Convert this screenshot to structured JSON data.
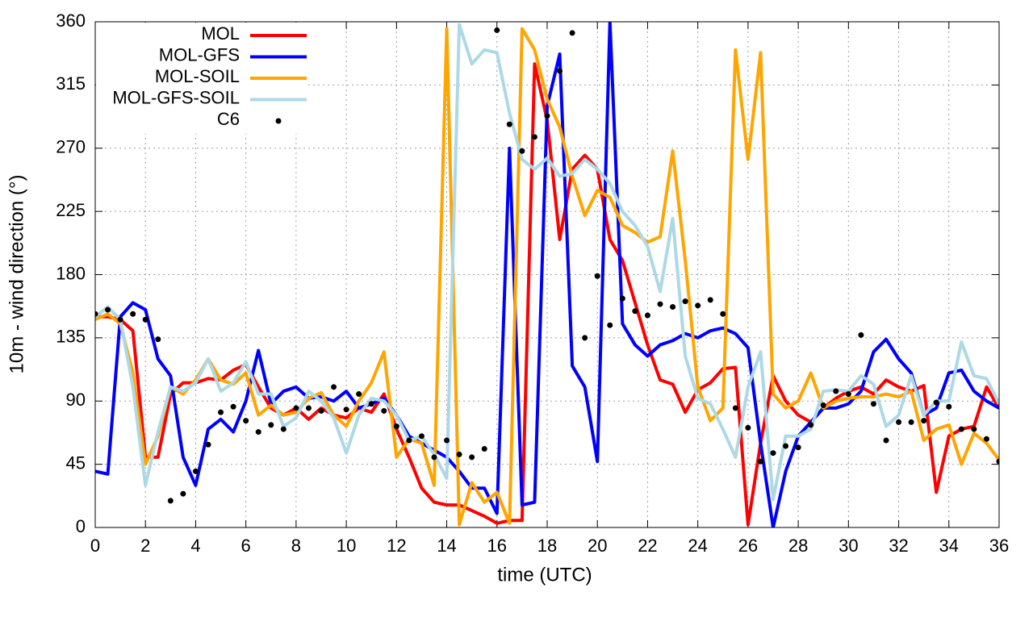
{
  "chart_data": {
    "type": "line",
    "xlabel": "time (UTC)",
    "ylabel": "10m - wind direction (°)",
    "x": [
      0,
      0.5,
      1,
      1.5,
      2,
      2.5,
      3,
      3.5,
      4,
      4.5,
      5,
      5.5,
      6,
      6.5,
      7,
      7.5,
      8,
      8.5,
      9,
      9.5,
      10,
      10.5,
      11,
      11.5,
      12,
      12.5,
      13,
      13.5,
      14,
      14.5,
      15,
      15.5,
      16,
      16.5,
      17,
      17.5,
      18,
      18.5,
      19,
      19.5,
      20,
      20.5,
      21,
      21.5,
      22,
      22.5,
      23,
      23.5,
      24,
      24.5,
      25,
      25.5,
      26,
      26.5,
      27,
      27.5,
      28,
      28.5,
      29,
      29.5,
      30,
      30.5,
      31,
      31.5,
      32,
      32.5,
      33,
      33.5,
      34,
      34.5,
      35,
      35.5,
      36
    ],
    "series": [
      {
        "name": "MOL",
        "color": "#ff0000",
        "style": "line",
        "values": [
          150,
          150,
          148,
          140,
          50,
          50,
          95,
          103,
          103,
          106,
          105,
          112,
          116,
          100,
          85,
          80,
          85,
          77,
          85,
          80,
          78,
          85,
          82,
          95,
          70,
          50,
          28,
          18,
          16,
          16,
          12,
          8,
          3,
          5,
          5,
          330,
          290,
          205,
          255,
          265,
          255,
          205,
          190,
          160,
          130,
          105,
          102,
          82,
          98,
          103,
          113,
          114,
          2,
          60,
          108,
          90,
          80,
          75,
          85,
          92,
          97,
          100,
          95,
          105,
          100,
          97,
          101,
          25,
          65,
          70,
          72,
          100,
          85
        ]
      },
      {
        "name": "MOL-GFS",
        "color": "#0000ff",
        "style": "line",
        "values": [
          40,
          38,
          150,
          160,
          155,
          120,
          108,
          50,
          30,
          70,
          77,
          68,
          90,
          126,
          88,
          97,
          100,
          92,
          93,
          90,
          97,
          85,
          88,
          92,
          80,
          65,
          60,
          55,
          50,
          40,
          28,
          28,
          10,
          270,
          16,
          18,
          300,
          337,
          115,
          100,
          47,
          360,
          145,
          130,
          122,
          130,
          133,
          138,
          135,
          140,
          142,
          138,
          128,
          60,
          0,
          40,
          65,
          75,
          85,
          85,
          88,
          97,
          125,
          134,
          120,
          110,
          80,
          85,
          110,
          112,
          97,
          90,
          85
        ]
      },
      {
        "name": "MOL-SOIL",
        "color": "#ffa500",
        "style": "line",
        "values": [
          148,
          152,
          145,
          110,
          45,
          65,
          100,
          95,
          105,
          120,
          105,
          102,
          110,
          80,
          87,
          80,
          82,
          92,
          96,
          80,
          72,
          90,
          103,
          125,
          50,
          63,
          60,
          30,
          355,
          2,
          32,
          18,
          25,
          3,
          355,
          340,
          305,
          285,
          250,
          222,
          240,
          235,
          215,
          210,
          203,
          207,
          268,
          190,
          100,
          76,
          85,
          340,
          262,
          338,
          95,
          85,
          90,
          110,
          85,
          90,
          92,
          93,
          93,
          95,
          93,
          97,
          62,
          70,
          73,
          45,
          67,
          60,
          48
        ]
      },
      {
        "name": "MOL-GFS-SOIL",
        "color": "#add8e6",
        "style": "line",
        "values": [
          150,
          157,
          148,
          100,
          30,
          68,
          100,
          97,
          103,
          120,
          97,
          103,
          118,
          95,
          95,
          72,
          78,
          97,
          90,
          78,
          53,
          80,
          92,
          90,
          80,
          62,
          65,
          52,
          35,
          358,
          330,
          340,
          338,
          295,
          262,
          255,
          263,
          250,
          252,
          262,
          255,
          245,
          225,
          215,
          200,
          168,
          220,
          122,
          92,
          88,
          70,
          50,
          100,
          125,
          20,
          65,
          65,
          70,
          97,
          98,
          97,
          108,
          102,
          72,
          80,
          108,
          80,
          90,
          90,
          132,
          108,
          106,
          88
        ]
      },
      {
        "name": "C6",
        "color": "#000000",
        "style": "points",
        "values": [
          152,
          155,
          148,
          152,
          148,
          134,
          19,
          24,
          40,
          59,
          82,
          86,
          76,
          68,
          73,
          70,
          85,
          85,
          83,
          100,
          84,
          95,
          88,
          83,
          72,
          62,
          65,
          50,
          62,
          52,
          50,
          56,
          354,
          287,
          268,
          278,
          293,
          325,
          352,
          135,
          179,
          144,
          163,
          154,
          151,
          159,
          157,
          161,
          158,
          162,
          152,
          85,
          71,
          47,
          53,
          58,
          57,
          73,
          87,
          97,
          95,
          137,
          88,
          62,
          75,
          75,
          76,
          89,
          86,
          70,
          70,
          63,
          47
        ]
      }
    ],
    "xlim": [
      0,
      36
    ],
    "xticks": [
      0,
      2,
      4,
      6,
      8,
      10,
      12,
      14,
      16,
      18,
      20,
      22,
      24,
      26,
      28,
      30,
      32,
      34,
      36
    ],
    "ylim": [
      0,
      360
    ],
    "yticks": [
      0,
      45,
      90,
      135,
      180,
      225,
      270,
      315,
      360
    ],
    "grid": true,
    "legend": "top left"
  }
}
